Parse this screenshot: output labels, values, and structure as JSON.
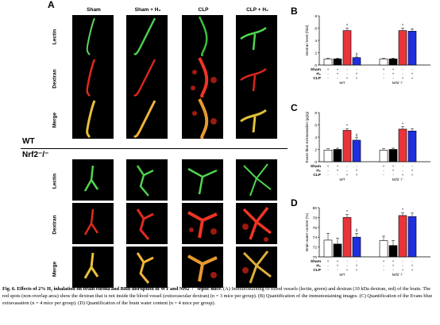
{
  "figure": {
    "panel_a_label": "A",
    "columns": [
      "Sham",
      "Sham + H₂",
      "CLP",
      "CLP + H₂"
    ],
    "rows": [
      "Lectin",
      "Dextran",
      "Merge"
    ],
    "groups": [
      "WT",
      "Nrf2⁻/⁻"
    ]
  },
  "chart_data": [
    {
      "panel": "B",
      "type": "bar",
      "ylabel": "Dextran level (fold)",
      "ylim": [
        0,
        8
      ],
      "yticks": [
        0,
        2,
        4,
        6,
        8
      ],
      "row_labels": [
        "Sham",
        "H₂",
        "CLP"
      ],
      "conditions": [
        {
          "sham": "+",
          "h2": "-",
          "clp": "-"
        },
        {
          "sham": "+",
          "h2": "+",
          "clp": "-"
        },
        {
          "sham": "-",
          "h2": "-",
          "clp": "+"
        },
        {
          "sham": "-",
          "h2": "+",
          "clp": "+"
        }
      ],
      "groups": [
        "WT",
        "Nrf2⁻/⁻"
      ],
      "series": [
        {
          "group": "WT",
          "values": [
            1.0,
            1.0,
            5.6,
            1.2
          ],
          "errors": [
            0.1,
            0.1,
            0.4,
            0.1
          ],
          "colors": [
            "#ffffff",
            "#000000",
            "#e8343a",
            "#1f2fe0"
          ],
          "markers": [
            "",
            "",
            "*",
            "#"
          ]
        },
        {
          "group": "Nrf2⁻/⁻",
          "values": [
            1.0,
            1.0,
            5.6,
            5.5
          ],
          "errors": [
            0.1,
            0.1,
            0.4,
            0.4
          ],
          "colors": [
            "#ffffff",
            "#000000",
            "#e8343a",
            "#1f2fe0"
          ],
          "markers": [
            "",
            "",
            "*",
            ""
          ]
        }
      ]
    },
    {
      "panel": "C",
      "type": "bar",
      "ylabel": "Evans blue extravasation (μg/g)",
      "ylim": [
        0,
        8
      ],
      "yticks": [
        0,
        2,
        4,
        6,
        8
      ],
      "row_labels": [
        "Sham",
        "H₂",
        "CLP"
      ],
      "conditions": [
        {
          "sham": "+",
          "h2": "-",
          "clp": "-"
        },
        {
          "sham": "+",
          "h2": "+",
          "clp": "-"
        },
        {
          "sham": "-",
          "h2": "-",
          "clp": "+"
        },
        {
          "sham": "-",
          "h2": "+",
          "clp": "+"
        }
      ],
      "groups": [
        "WT",
        "Nrf2⁻/⁻"
      ],
      "series": [
        {
          "group": "WT",
          "values": [
            1.9,
            2.0,
            5.1,
            3.5
          ],
          "errors": [
            0.2,
            0.2,
            0.3,
            0.4
          ],
          "colors": [
            "#ffffff",
            "#000000",
            "#e8343a",
            "#1f2fe0"
          ],
          "markers": [
            "",
            "",
            "*",
            "#"
          ]
        },
        {
          "group": "Nrf2⁻/⁻",
          "values": [
            1.9,
            2.0,
            5.3,
            5.0
          ],
          "errors": [
            0.2,
            0.2,
            0.4,
            0.4
          ],
          "colors": [
            "#ffffff",
            "#000000",
            "#e8343a",
            "#1f2fe0"
          ],
          "markers": [
            "",
            "",
            "*",
            ""
          ]
        }
      ]
    },
    {
      "panel": "D",
      "type": "bar",
      "ylabel": "Brain water content (%)",
      "ylim": [
        70,
        80
      ],
      "yticks": [
        70,
        72,
        74,
        76,
        78,
        80
      ],
      "row_labels": [
        "Sham",
        "H₂",
        "CLP"
      ],
      "conditions": [
        {
          "sham": "+",
          "h2": "-",
          "clp": "-"
        },
        {
          "sham": "+",
          "h2": "+",
          "clp": "-"
        },
        {
          "sham": "-",
          "h2": "-",
          "clp": "+"
        },
        {
          "sham": "-",
          "h2": "+",
          "clp": "+"
        }
      ],
      "groups": [
        "WT",
        "Nrf2⁻/⁻"
      ],
      "series": [
        {
          "group": "WT",
          "values": [
            73.4,
            72.6,
            78.0,
            74.0
          ],
          "errors": [
            1.4,
            1.2,
            0.6,
            0.8
          ],
          "colors": [
            "#ffffff",
            "#000000",
            "#e8343a",
            "#1f2fe0"
          ],
          "markers": [
            "",
            "",
            "*",
            "#"
          ]
        },
        {
          "group": "Nrf2⁻/⁻",
          "values": [
            73.3,
            72.3,
            78.4,
            78.2
          ],
          "errors": [
            0.9,
            1.0,
            0.6,
            0.7
          ],
          "colors": [
            "#ffffff",
            "#000000",
            "#e8343a",
            "#1f2fe0"
          ],
          "markers": [
            "",
            "",
            "*",
            ""
          ]
        }
      ]
    }
  ],
  "caption": {
    "lead": "Fig. 6. Effects of 2% H₂ inhalation on brain edema and BBB disruption in WT and Nrf2⁻/⁻ septic mice.",
    "body": " (A) Immunostaining of blood vessels (lectin, green) and dextran (10 kDa dextran, red) of the brain. The red spots (non-overlap area) show the dextran that is not inside the blood vessel (extravascular dextran) (n = 3 mice per group). (B) Quantification of the immunostaining images. (C) Quantification of the Evans blue extravasation (n = 4 mice per group). (D) Quantification of the brain water content (n = 4 mice per group)."
  }
}
